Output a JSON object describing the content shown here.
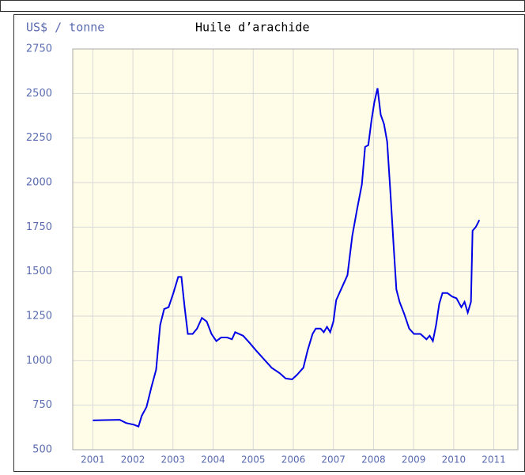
{
  "chart_data": {
    "type": "line",
    "unit_label": "US$ / tonne",
    "title": "Huile d’arachide",
    "x": [
      2001.0,
      2001.67,
      2001.83,
      2002.03,
      2002.14,
      2002.22,
      2002.34,
      2002.46,
      2002.58,
      2002.68,
      2002.78,
      2002.89,
      2003.01,
      2003.13,
      2003.21,
      2003.29,
      2003.37,
      2003.49,
      2003.6,
      2003.72,
      2003.84,
      2003.96,
      2004.08,
      2004.2,
      2004.35,
      2004.47,
      2004.55,
      2004.75,
      2004.91,
      2005.06,
      2005.26,
      2005.46,
      2005.66,
      2005.81,
      2005.97,
      2006.09,
      2006.25,
      2006.36,
      2006.48,
      2006.56,
      2006.68,
      2006.76,
      2006.84,
      2006.92,
      2007.0,
      2007.07,
      2007.19,
      2007.35,
      2007.47,
      2007.59,
      2007.71,
      2007.79,
      2007.87,
      2007.95,
      2008.02,
      2008.1,
      2008.18,
      2008.26,
      2008.34,
      2008.42,
      2008.5,
      2008.57,
      2008.65,
      2008.77,
      2008.89,
      2009.01,
      2009.17,
      2009.32,
      2009.4,
      2009.48,
      2009.56,
      2009.64,
      2009.72,
      2009.84,
      2009.96,
      2010.07,
      2010.19,
      2010.27,
      2010.35,
      2010.43,
      2010.47,
      2010.55,
      2010.64
    ],
    "series": [
      {
        "name": "Huile d’arachide",
        "color": "#0000e6",
        "values": [
          665,
          668,
          650,
          640,
          630,
          690,
          740,
          850,
          950,
          1200,
          1290,
          1300,
          1380,
          1470,
          1470,
          1300,
          1150,
          1150,
          1180,
          1240,
          1220,
          1150,
          1110,
          1130,
          1130,
          1120,
          1160,
          1140,
          1100,
          1060,
          1010,
          960,
          930,
          900,
          895,
          920,
          960,
          1060,
          1150,
          1180,
          1180,
          1160,
          1190,
          1160,
          1220,
          1340,
          1400,
          1480,
          1700,
          1850,
          1990,
          2200,
          2210,
          2350,
          2450,
          2530,
          2380,
          2330,
          2230,
          1950,
          1650,
          1400,
          1330,
          1260,
          1180,
          1150,
          1150,
          1120,
          1140,
          1110,
          1200,
          1320,
          1380,
          1380,
          1360,
          1350,
          1300,
          1330,
          1270,
          1330,
          1730,
          1750,
          1790
        ]
      }
    ],
    "xlim": [
      2000.5,
      2011.6
    ],
    "xticks": [
      2001,
      2002,
      2003,
      2004,
      2005,
      2006,
      2007,
      2008,
      2009,
      2010,
      2011
    ],
    "ylim": [
      500,
      2750
    ],
    "yticks": [
      500,
      750,
      1000,
      1250,
      1500,
      1750,
      2000,
      2250,
      2500,
      2750
    ],
    "grid": true
  }
}
